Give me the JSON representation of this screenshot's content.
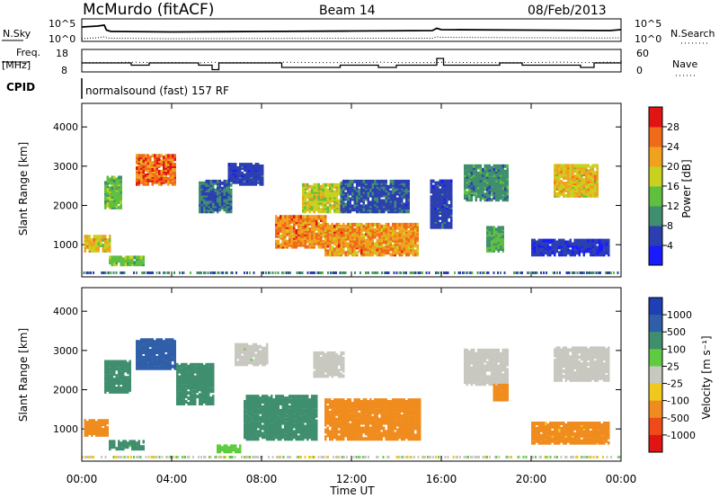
{
  "header": {
    "station": "McMurdo (fitACF)",
    "beam": "Beam 14",
    "date": "08/Feb/2013"
  },
  "colors": {
    "power_scale": [
      "#1a1aff",
      "#2c3fb0",
      "#3f8f6f",
      "#5fbf3f",
      "#c8d21e",
      "#f0a21e",
      "#f06a1a",
      "#e11414"
    ],
    "velocity_scale": [
      "#1f3fb5",
      "#2f5fa8",
      "#3f8f6f",
      "#5fcc3f",
      "#c8c8c0",
      "#f0c81e",
      "#f08c1e",
      "#f04a1a",
      "#e11414"
    ]
  },
  "chart_data": [
    {
      "type": "line",
      "panel": "noise",
      "left_label": "N.Sky",
      "right_label": "N.Search",
      "left_ticks": [
        "10^5",
        "10^0"
      ],
      "right_ticks": [
        "10^5",
        "10^0"
      ],
      "series": [
        {
          "name": "N.Sky",
          "style": "solid"
        },
        {
          "name": "N.Search",
          "style": "dotted"
        }
      ],
      "x_hours": [
        0,
        0.7,
        1.0,
        1.1,
        1.3,
        4,
        8,
        12,
        15.6,
        15.8,
        16,
        20,
        23.5,
        24
      ],
      "sky_log": [
        3.2,
        3.4,
        3.6,
        2.5,
        2.2,
        2.1,
        2.2,
        2.3,
        2.4,
        2.9,
        2.6,
        2.5,
        2.4,
        2.6
      ],
      "search_log": [
        0.6,
        0.8,
        1.0,
        0.8,
        0.7,
        0.6,
        0.65,
        0.7,
        0.7,
        1.0,
        0.9,
        0.8,
        0.75,
        0.8
      ],
      "ylim_log": [
        0,
        5
      ]
    },
    {
      "type": "line",
      "panel": "frequency",
      "left_label": "Freq.",
      "left_unit": "[MHz]",
      "right_label": "Nave",
      "left_ticks": [
        "18",
        "8"
      ],
      "right_ticks": [
        "60",
        "0"
      ],
      "ylim": [
        8,
        18
      ],
      "x_hours": [
        0,
        1.5,
        2.2,
        3.0,
        3.6,
        4.6,
        5.2,
        5.8,
        6.1,
        7.4,
        8.6,
        8.9,
        10.3,
        11.5,
        12.5,
        13.2,
        14.0,
        15.0,
        15.8,
        16.1,
        17.4,
        18.6,
        19.6,
        21.4,
        22.2,
        22.8,
        23.4,
        24
      ],
      "freq": [
        12,
        12,
        11,
        12,
        12,
        12,
        11,
        9,
        12,
        12,
        12,
        10,
        10,
        11,
        11,
        10,
        11,
        11,
        14,
        11,
        11,
        12,
        11,
        11,
        10,
        12,
        12,
        13
      ],
      "nave": [
        25,
        25,
        26,
        25,
        25,
        25,
        24,
        26,
        25,
        25,
        25,
        26,
        25,
        25,
        25,
        26,
        25,
        25,
        25,
        26,
        25,
        25,
        25,
        26,
        25,
        25,
        26,
        25
      ]
    },
    {
      "type": "table",
      "panel": "cpid",
      "label": "CPID",
      "value": "normalsound (fast) 157 RF"
    },
    {
      "type": "heatmap",
      "panel": "power",
      "ylabel": "Slant Range [km]",
      "yticks": [
        1000,
        2000,
        3000,
        4000
      ],
      "ylim": [
        180,
        4600
      ],
      "colorbar_label": "Power [dB]",
      "colorbar_ticks": [
        4,
        8,
        12,
        16,
        20,
        24,
        28
      ],
      "colorbar_range": [
        0,
        32
      ],
      "blobs": [
        {
          "t0": 2.4,
          "t1": 4.2,
          "r0": 2500,
          "r1": 3250,
          "val": 26
        },
        {
          "t0": 0.1,
          "t1": 1.3,
          "r0": 800,
          "r1": 1200,
          "val": 20
        },
        {
          "t0": 1.0,
          "t1": 1.8,
          "r0": 1900,
          "r1": 2700,
          "val": 14
        },
        {
          "t0": 8.6,
          "t1": 10.8,
          "r0": 900,
          "r1": 1700,
          "val": 24
        },
        {
          "t0": 10.8,
          "t1": 14.9,
          "r0": 700,
          "r1": 1500,
          "val": 23
        },
        {
          "t0": 9.8,
          "t1": 11.5,
          "r0": 1800,
          "r1": 2500,
          "val": 18
        },
        {
          "t0": 5.2,
          "t1": 6.6,
          "r0": 1800,
          "r1": 2600,
          "val": 8
        },
        {
          "t0": 6.5,
          "t1": 8.0,
          "r0": 2500,
          "r1": 3000,
          "val": 6
        },
        {
          "t0": 11.5,
          "t1": 14.5,
          "r0": 1800,
          "r1": 2600,
          "val": 7
        },
        {
          "t0": 15.5,
          "t1": 16.5,
          "r0": 1400,
          "r1": 2600,
          "val": 6
        },
        {
          "t0": 17.0,
          "t1": 19.0,
          "r0": 2100,
          "r1": 3000,
          "val": 10
        },
        {
          "t0": 21.0,
          "t1": 23.0,
          "r0": 2200,
          "r1": 3000,
          "val": 20
        },
        {
          "t0": 20.0,
          "t1": 23.5,
          "r0": 700,
          "r1": 1100,
          "val": 5
        },
        {
          "t0": 18.0,
          "t1": 18.8,
          "r0": 800,
          "r1": 1400,
          "val": 12
        },
        {
          "t0": 1.2,
          "t1": 2.8,
          "r0": 450,
          "r1": 650,
          "val": 14
        }
      ]
    },
    {
      "type": "heatmap",
      "panel": "velocity",
      "ylabel": "Slant Range [km]",
      "yticks": [
        1000,
        2000,
        3000,
        4000
      ],
      "ylim": [
        180,
        4600
      ],
      "colorbar_label": "Velocity [m s⁻¹]",
      "colorbar_ticks": [
        "1000",
        "500",
        "100",
        "25",
        "-25",
        "-100",
        "-500",
        "-1000"
      ],
      "bins": [
        1000,
        500,
        100,
        25,
        -25,
        -100,
        -500,
        -1000
      ],
      "blobs": [
        {
          "t0": 2.4,
          "t1": 4.2,
          "r0": 2500,
          "r1": 3250,
          "val": 700
        },
        {
          "t0": 0.1,
          "t1": 1.2,
          "r0": 800,
          "r1": 1200,
          "val": -150
        },
        {
          "t0": 1.0,
          "t1": 2.2,
          "r0": 1900,
          "r1": 2700,
          "val": 200
        },
        {
          "t0": 4.2,
          "t1": 5.8,
          "r0": 1600,
          "r1": 2600,
          "val": 250
        },
        {
          "t0": 7.2,
          "t1": 10.4,
          "r0": 700,
          "r1": 1800,
          "val": 250
        },
        {
          "t0": 10.8,
          "t1": 15.0,
          "r0": 700,
          "r1": 1700,
          "val": -150
        },
        {
          "t0": 6.8,
          "t1": 8.2,
          "r0": 2600,
          "r1": 3100,
          "val": 20
        },
        {
          "t0": 10.3,
          "t1": 11.6,
          "r0": 2300,
          "r1": 2900,
          "val": 10
        },
        {
          "t0": 17.0,
          "t1": 19.0,
          "r0": 2100,
          "r1": 3000,
          "val": 15
        },
        {
          "t0": 21.0,
          "t1": 23.5,
          "r0": 2200,
          "r1": 3050,
          "val": 5
        },
        {
          "t0": 18.3,
          "t1": 19.0,
          "r0": 1700,
          "r1": 2100,
          "val": -200
        },
        {
          "t0": 20.0,
          "t1": 23.5,
          "r0": 600,
          "r1": 1100,
          "val": -120
        },
        {
          "t0": 1.2,
          "t1": 2.8,
          "r0": 450,
          "r1": 650,
          "val": 120
        },
        {
          "t0": 6.0,
          "t1": 7.0,
          "r0": 380,
          "r1": 560,
          "val": 80
        }
      ]
    }
  ],
  "x_axis": {
    "label": "Time UT",
    "ticks": [
      "00:00",
      "04:00",
      "08:00",
      "12:00",
      "16:00",
      "20:00",
      "00:00"
    ],
    "tick_hours": [
      0,
      4,
      8,
      12,
      16,
      20,
      24
    ]
  }
}
